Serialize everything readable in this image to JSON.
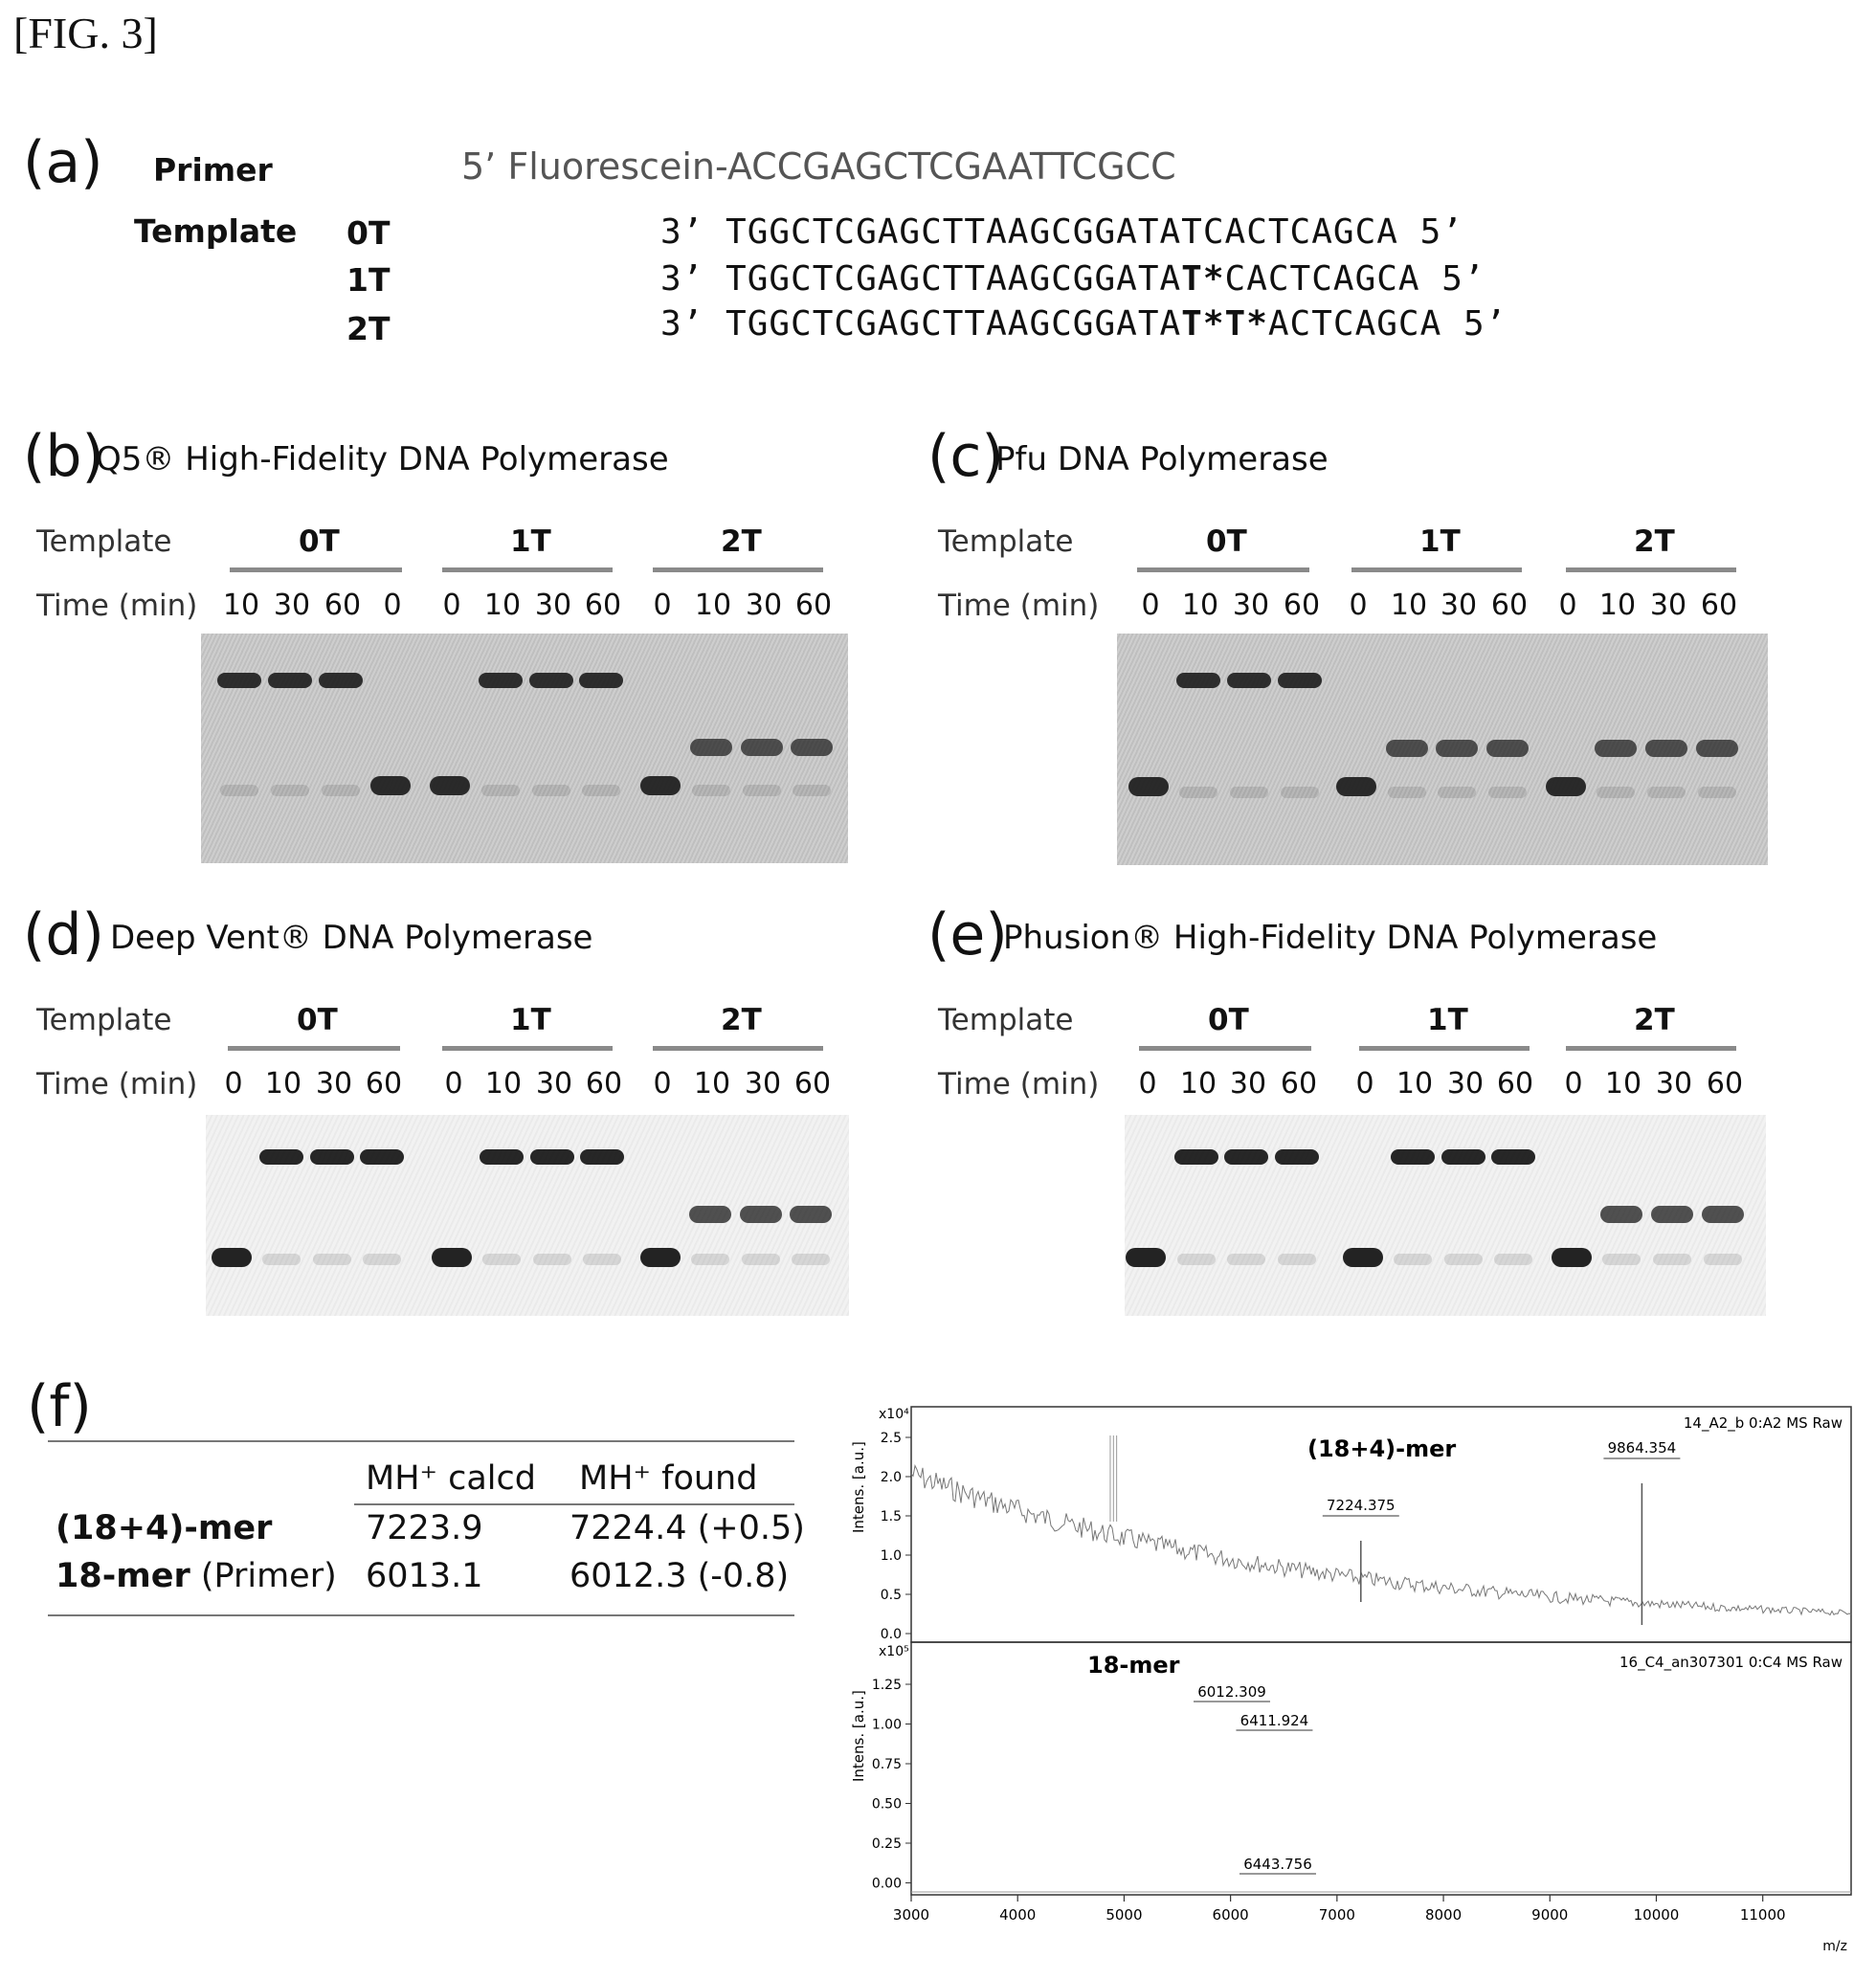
{
  "figure_label": "[FIG. 3]",
  "panel_a": {
    "letter": "(a)",
    "primer_label": "Primer",
    "primer_seq": "5’ Fluorescein-ACCGAGCTCGAATTCGCC",
    "template_label": "Template",
    "rows": [
      {
        "name": "0T",
        "prefix": "3’  TGGCTCGAGCTTAAGCGGATAT",
        "mod": "",
        "suffix": "CACTCAGCA  5’"
      },
      {
        "name": "1T",
        "prefix": "3’  TGGCTCGAGCTTAAGCGGATA",
        "mod": "T*",
        "suffix": "CACTCAGCA  5’"
      },
      {
        "name": "2T",
        "prefix": "3’  TGGCTCGAGCTTAAGCGGATA",
        "mod": "T*T*",
        "suffix": "ACTCAGCA  5’"
      }
    ]
  },
  "gels": [
    {
      "letter": "(b)",
      "title": "Q5® High-Fidelity DNA Polymerase",
      "template_label": "Template",
      "time_label": "Time (min)",
      "groups": [
        "0T",
        "1T",
        "2T"
      ],
      "times": [
        "10",
        "30",
        "60",
        "0",
        "0",
        "10",
        "30",
        "60",
        "0",
        "10",
        "30",
        "60"
      ]
    },
    {
      "letter": "(c)",
      "title": "Pfu DNA Polymerase",
      "template_label": "Template",
      "time_label": "Time (min)",
      "groups": [
        "0T",
        "1T",
        "2T"
      ],
      "times": [
        "0",
        "10",
        "30",
        "60",
        "0",
        "10",
        "30",
        "60",
        "0",
        "10",
        "30",
        "60"
      ]
    },
    {
      "letter": "(d)",
      "title": "Deep Vent® DNA Polymerase",
      "template_label": "Template",
      "time_label": "Time (min)",
      "groups": [
        "0T",
        "1T",
        "2T"
      ],
      "times": [
        "0",
        "10",
        "30",
        "60",
        "0",
        "10",
        "30",
        "60",
        "0",
        "10",
        "30",
        "60"
      ]
    },
    {
      "letter": "(e)",
      "title": "Phusion® High-Fidelity DNA Polymerase",
      "template_label": "Template",
      "time_label": "Time (min)",
      "groups": [
        "0T",
        "1T",
        "2T"
      ],
      "times": [
        "0",
        "10",
        "30",
        "60",
        "0",
        "10",
        "30",
        "60",
        "0",
        "10",
        "30",
        "60"
      ]
    }
  ],
  "panel_f": {
    "letter": "(f)",
    "table": {
      "headers": [
        "",
        "MH⁺ calcd",
        "MH⁺ found"
      ],
      "rows": [
        {
          "name": "(18+4)-mer",
          "name_suffix": "",
          "calcd": "7223.9",
          "found": "7224.4 (+0.5)"
        },
        {
          "name": "18-mer",
          "name_suffix": " (Primer)",
          "calcd": "6013.1",
          "found": "6012.3 (-0.8)"
        }
      ]
    },
    "ms_top": {
      "ylabel": "Intens. [a.u.]",
      "scale": "x10⁴",
      "run": "14_A2_b 0:A2 MS Raw",
      "yticks": [
        "2.5",
        "2.0",
        "1.5",
        "1.0",
        "0.5",
        "0.0"
      ],
      "annotation": "(18+4)-mer",
      "peaks": [
        {
          "label": "7224.375",
          "mz": 7224.375
        },
        {
          "label": "9864.354",
          "mz": 9864.354
        }
      ]
    },
    "ms_bottom": {
      "ylabel": "Intens. [a.u.]",
      "scale": "x10⁵",
      "run": "16_C4_an307301 0:C4 MS Raw",
      "yticks": [
        "1.25",
        "1.00",
        "0.75",
        "0.50",
        "0.25",
        "0.00"
      ],
      "annotation": "18-mer",
      "peaks": [
        {
          "label": "6012.309",
          "mz": 6012.309
        },
        {
          "label": "6411.924",
          "mz": 6411.924
        },
        {
          "label": "6443.756",
          "mz": 6443.756
        }
      ]
    },
    "xticks": [
      "3000",
      "4000",
      "5000",
      "6000",
      "7000",
      "8000",
      "9000",
      "10000",
      "11000"
    ],
    "xlabel": "m/z"
  }
}
